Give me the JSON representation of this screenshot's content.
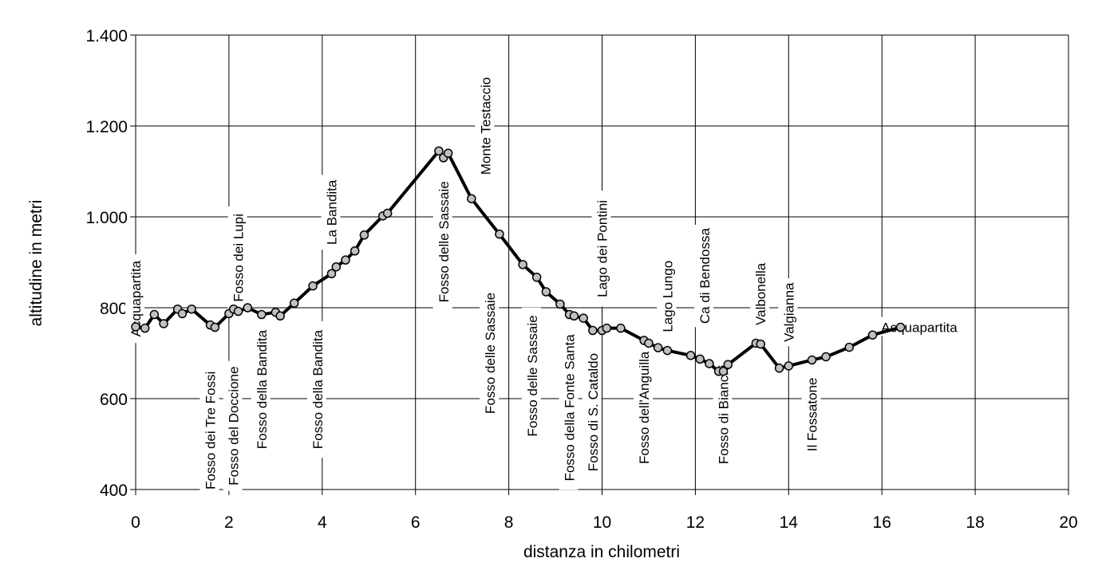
{
  "chart_data": {
    "type": "line",
    "title": "",
    "xlabel": "distanza in chilometri",
    "ylabel": "altitudine  in metri",
    "xlim": [
      0,
      20
    ],
    "ylim": [
      400,
      1400
    ],
    "x_ticks": [
      0,
      2,
      4,
      6,
      8,
      10,
      12,
      14,
      16,
      18,
      20
    ],
    "y_ticks": [
      400,
      600,
      800,
      1000,
      1200,
      1400
    ],
    "x_tick_labels": [
      "0",
      "2",
      "4",
      "6",
      "8",
      "10",
      "12",
      "14",
      "16",
      "18",
      "20"
    ],
    "y_tick_labels": [
      "400",
      "600",
      "800",
      "1.000",
      "1.200",
      "1.400"
    ],
    "grid": true,
    "legend": "none",
    "line_color": "#000000",
    "marker_color": "#c0c0c0",
    "series": [
      {
        "x": [
          0.0,
          0.2,
          0.4,
          0.6,
          0.9,
          1.0,
          1.2,
          1.6,
          1.7,
          2.0,
          2.1,
          2.2,
          2.4,
          2.7,
          3.0,
          3.1,
          3.4,
          3.8,
          4.2,
          4.3,
          4.5,
          4.7,
          4.9,
          5.3,
          5.4,
          6.5,
          6.6,
          6.7,
          7.2,
          7.8,
          8.3,
          8.6,
          8.8,
          9.1,
          9.3,
          9.4,
          9.6,
          9.8,
          10.0,
          10.1,
          10.4,
          10.9,
          11.0,
          11.2,
          11.4,
          11.9,
          12.1,
          12.3,
          12.5,
          12.6,
          12.7,
          13.3,
          13.4,
          13.8,
          14.0,
          14.5,
          14.8,
          15.3,
          15.8,
          16.4
        ],
        "y": [
          758,
          755,
          785,
          765,
          797,
          787,
          797,
          762,
          757,
          787,
          797,
          792,
          800,
          785,
          790,
          782,
          810,
          848,
          875,
          890,
          905,
          925,
          960,
          1002,
          1008,
          1145,
          1130,
          1140,
          1040,
          962,
          895,
          867,
          835,
          808,
          785,
          782,
          777,
          750,
          750,
          755,
          755,
          728,
          722,
          712,
          706,
          695,
          687,
          677,
          660,
          660,
          675,
          722,
          720,
          667,
          672,
          685,
          692,
          713,
          740,
          757
        ]
      }
    ],
    "annotations": [
      {
        "text": "Acquapartita",
        "x": 0.0,
        "y": 820,
        "rotation": -90
      },
      {
        "text": "Fosso dei Tre Fossi",
        "x": 1.6,
        "y": 530,
        "rotation": -90
      },
      {
        "text": "Fosso del Doccione",
        "x": 2.1,
        "y": 540,
        "rotation": -90
      },
      {
        "text": "Fosso dei Lupi",
        "x": 2.2,
        "y": 910,
        "rotation": -90
      },
      {
        "text": "Fosso della Bandita",
        "x": 2.7,
        "y": 620,
        "rotation": -90
      },
      {
        "text": "Fosso della Bandita",
        "x": 3.9,
        "y": 620,
        "rotation": -90
      },
      {
        "text": "La Bandita",
        "x": 4.2,
        "y": 1010,
        "rotation": -90
      },
      {
        "text": "Fosso delle Sassaie",
        "x": 6.6,
        "y": 945,
        "rotation": -90
      },
      {
        "text": "Monte Testaccio",
        "x": 7.5,
        "y": 1200,
        "rotation": -90
      },
      {
        "text": "Fosso delle Sassaie",
        "x": 7.6,
        "y": 700,
        "rotation": -90
      },
      {
        "text": "Fosso delle Sassaie",
        "x": 8.5,
        "y": 650,
        "rotation": -90
      },
      {
        "text": "Fosso della Fonte Santa",
        "x": 9.3,
        "y": 580,
        "rotation": -90
      },
      {
        "text": "Fosso di S. Cataldo",
        "x": 9.8,
        "y": 570,
        "rotation": -90
      },
      {
        "text": "Lago dei Pontini",
        "x": 10.0,
        "y": 930,
        "rotation": -90
      },
      {
        "text": "Fosso dell'Anguilla",
        "x": 10.9,
        "y": 580,
        "rotation": -90
      },
      {
        "text": "Lago Lungo",
        "x": 11.4,
        "y": 825,
        "rotation": -90
      },
      {
        "text": "Ca di Bendossa",
        "x": 12.2,
        "y": 870,
        "rotation": -90
      },
      {
        "text": "Fosso di Bianchi",
        "x": 12.6,
        "y": 565,
        "rotation": -90
      },
      {
        "text": "Valbonella",
        "x": 13.4,
        "y": 830,
        "rotation": -90
      },
      {
        "text": "Valgianna",
        "x": 14.0,
        "y": 790,
        "rotation": -90
      },
      {
        "text": "Il Fossatone",
        "x": 14.5,
        "y": 565,
        "rotation": -90
      },
      {
        "text": "Acquapartita",
        "x": 16.8,
        "y": 757,
        "rotation": 0
      }
    ]
  }
}
